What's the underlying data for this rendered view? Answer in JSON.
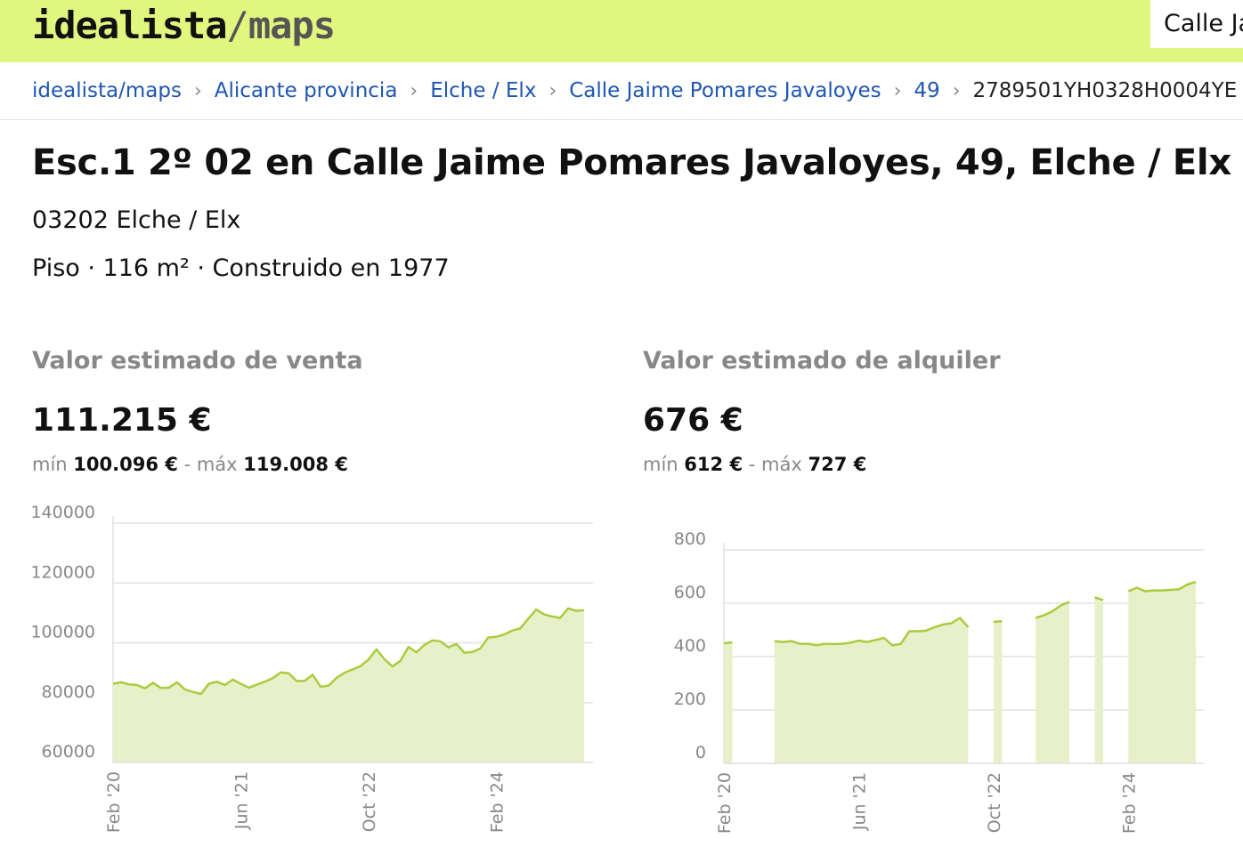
{
  "header": {
    "logo_main": "idealista",
    "logo_slash": "/",
    "logo_sub": "maps",
    "search_value": "Calle Jaime Pomares Javaloyes"
  },
  "breadcrumb": [
    {
      "label": "idealista/maps"
    },
    {
      "label": "Alicante provincia"
    },
    {
      "label": "Elche / Elx"
    },
    {
      "label": "Calle Jaime Pomares Javaloyes"
    },
    {
      "label": "49"
    },
    {
      "label": "2789501YH0328H0004YE"
    }
  ],
  "property": {
    "title": "Esc.1 2º 02 en Calle Jaime Pomares Javaloyes, 49, Elche / Elx",
    "address": "03202 Elche / Elx",
    "specs": "Piso · 116 m² · Construido en 1977"
  },
  "sale": {
    "title": "Valor estimado de venta",
    "value": "111.215 €",
    "min_label": "mín",
    "min_value": "100.096 €",
    "dash": "-",
    "max_label": "máx",
    "max_value": "119.008 €"
  },
  "rent": {
    "title": "Valor estimado de alquiler",
    "value": "676 €",
    "min_label": "mín",
    "min_value": "612 €",
    "dash": "-",
    "max_label": "máx",
    "max_value": "727 €"
  },
  "colors": {
    "accent": "#e1f67f",
    "link": "#1e56b4",
    "line": "#a9cc3d",
    "fill": "#e8f0c9"
  },
  "chart_data": [
    {
      "type": "area",
      "title": "",
      "yticks": [
        "140000",
        "120000",
        "100000",
        "80000",
        "60000"
      ],
      "ylim": [
        60000,
        140000
      ],
      "xticks": [
        "Feb '20",
        "Jun '21",
        "Oct '22",
        "Feb '24"
      ],
      "xtick_index": [
        0,
        16,
        32,
        48
      ],
      "grid": true,
      "series": [
        {
          "values": [
            86300,
            86800,
            86100,
            85900,
            84800,
            86600,
            84900,
            85000,
            86800,
            84400,
            83600,
            82900,
            86300,
            87000,
            85900,
            87700,
            86300,
            85000,
            86000,
            87000,
            88200,
            90100,
            89800,
            87200,
            87300,
            89300,
            85300,
            85700,
            88300,
            90000,
            91100,
            92200,
            94400,
            97800,
            94500,
            92100,
            94000,
            98600,
            96800,
            99300,
            100800,
            100500,
            98500,
            99600,
            96700,
            96900,
            98100,
            101800,
            102000,
            102800,
            104100,
            104800,
            108000,
            111100,
            109500,
            108800,
            108300,
            111500,
            110700,
            110900
          ]
        }
      ]
    },
    {
      "type": "area",
      "title": "",
      "yticks": [
        "800",
        "600",
        "400",
        "200",
        "0"
      ],
      "ylim": [
        0,
        800
      ],
      "xticks": [
        "Feb '20",
        "Jun '21",
        "Oct '22",
        "Feb '24"
      ],
      "xtick_index": [
        0,
        16,
        32,
        48
      ],
      "grid": true,
      "series": [
        {
          "values": [
            450,
            453,
            null,
            null,
            null,
            null,
            458,
            455,
            458,
            448,
            448,
            443,
            448,
            447,
            448,
            452,
            460,
            455,
            462,
            470,
            442,
            448,
            495,
            495,
            497,
            510,
            520,
            525,
            545,
            510,
            null,
            null,
            530,
            533,
            null,
            null,
            null,
            545,
            555,
            570,
            592,
            605,
            null,
            null,
            622,
            612,
            null,
            null,
            645,
            658,
            645,
            648,
            648,
            650,
            652,
            670,
            680
          ]
        }
      ]
    }
  ]
}
